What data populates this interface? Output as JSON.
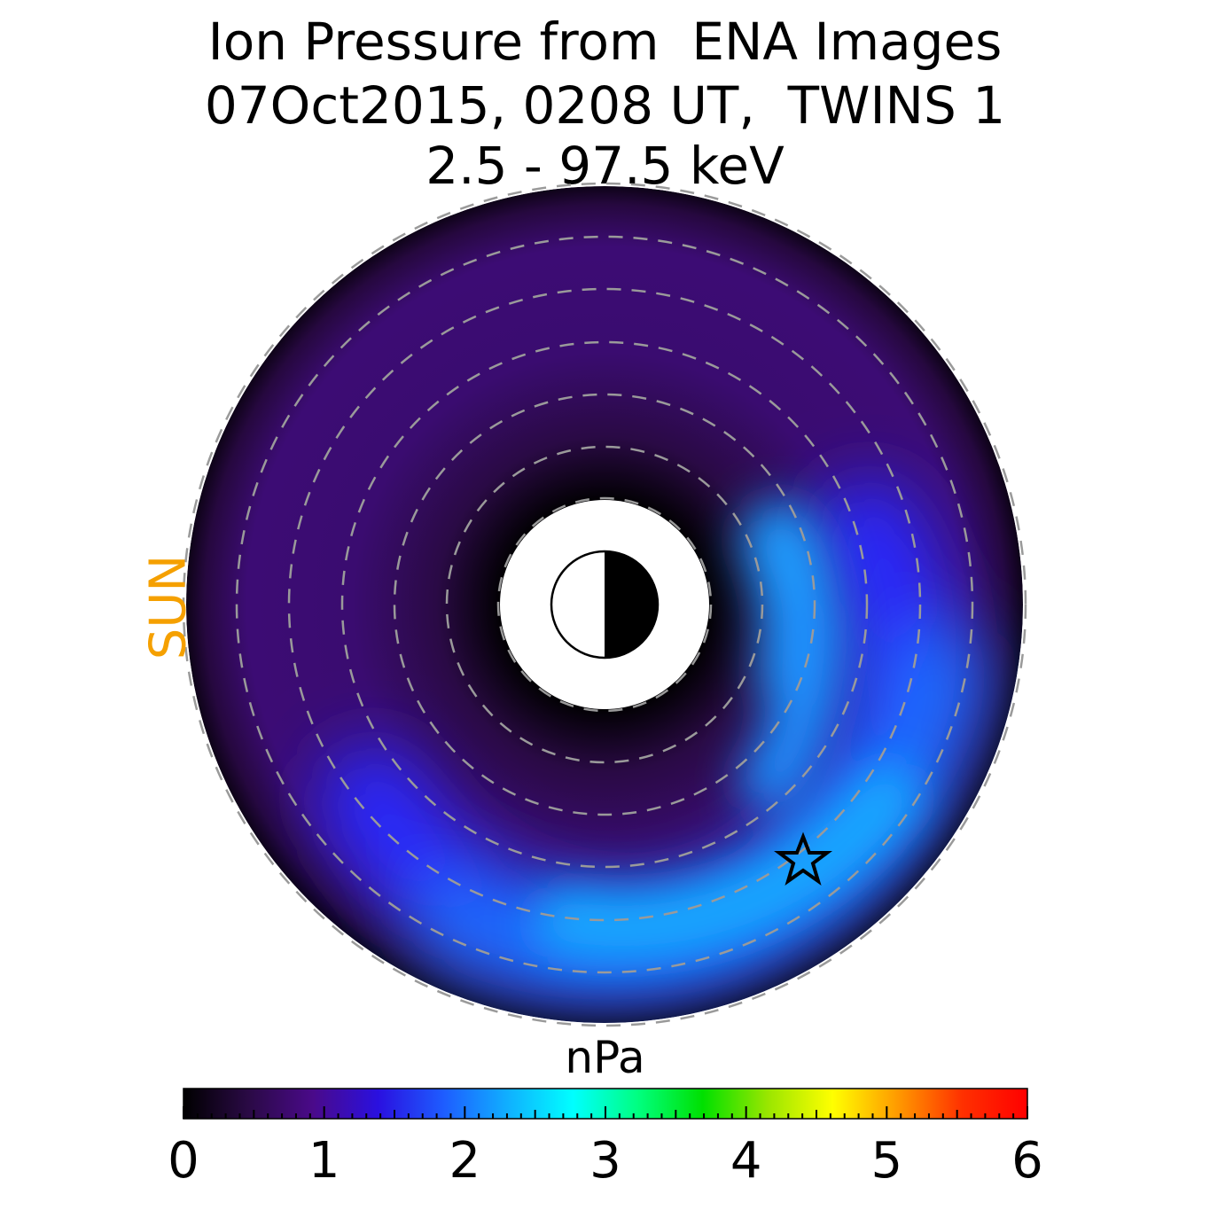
{
  "chart_data": {
    "type": "heatmap",
    "title_lines": [
      "Ion Pressure from  ENA Images",
      "07Oct2015, 0208 UT,  TWINS 1",
      "2.5 - 97.5 keV"
    ],
    "side_label": "SUN",
    "colorbar": {
      "label": "nPa",
      "range": [
        0,
        6
      ],
      "tick_labels": [
        "0",
        "1",
        "2",
        "3",
        "4",
        "5",
        "6"
      ],
      "colormap": [
        "#000000",
        "#2a0a45",
        "#4a0a8a",
        "#2a10e0",
        "#1e5cff",
        "#10b0ff",
        "#00ffff",
        "#00ff80",
        "#00e000",
        "#9ae600",
        "#ffff00",
        "#ff9a00",
        "#ff3000",
        "#ff0000"
      ]
    },
    "pressure_peak_nPa": 2.1,
    "sun_color": "#f5a000",
    "marker": "star"
  }
}
